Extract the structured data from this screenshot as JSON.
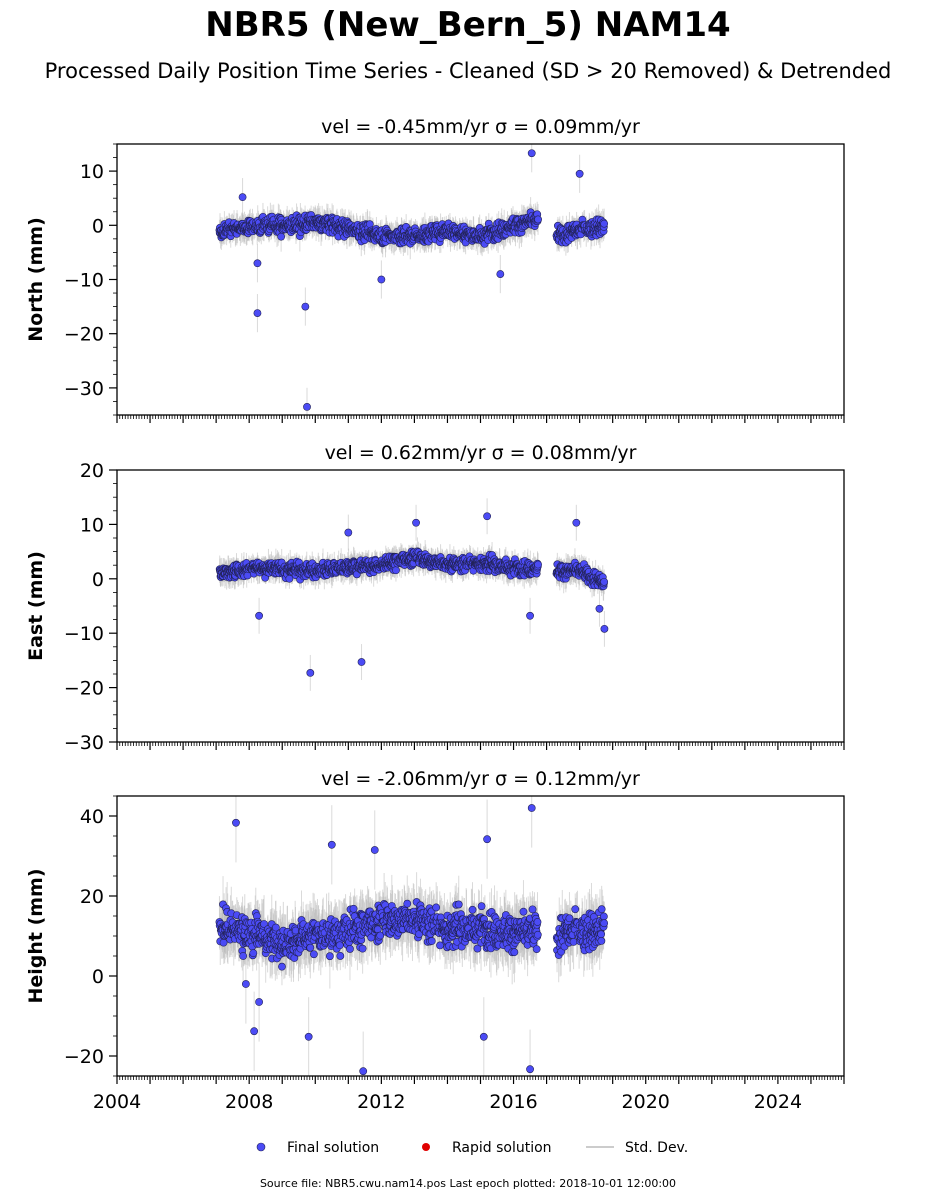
{
  "title": "NBR5 (New_Bern_5) NAM14",
  "subtitle": "Processed Daily Position Time Series - Cleaned (SD > 20 Removed) & Detrended",
  "footer": "Source file: NBR5.cwu.nam14.pos  Last epoch plotted: 2018-10-01 12:00:00",
  "legend": {
    "final": "Final solution",
    "rapid": "Rapid solution",
    "std": "Std. Dev."
  },
  "colors": {
    "final": "#4b4bf5",
    "final_edge": "#222255",
    "rapid": "#e00000",
    "std": "#bbbbbb"
  },
  "chart_data": [
    {
      "type": "scatter",
      "title": "vel = -0.45mm/yr   σ = 0.09mm/yr",
      "ylabel": "North (mm)",
      "xlim": [
        2004,
        2026
      ],
      "ylim": [
        -35,
        15
      ],
      "yticks": [
        10,
        0,
        -10,
        -20,
        -30
      ],
      "xticks": [],
      "data_range": [
        2007.1,
        2018.75
      ],
      "gap": [
        2016.75,
        2017.3
      ],
      "noise": {
        "base": 0,
        "sd": 1.8,
        "err": 1.6
      },
      "segments": [
        [
          2007.1,
          -1
        ],
        [
          2008.5,
          0
        ],
        [
          2009.5,
          0
        ],
        [
          2010.0,
          0.5
        ],
        [
          2011.0,
          -0.5
        ],
        [
          2012.0,
          -2
        ],
        [
          2013.0,
          -2
        ],
        [
          2014.0,
          -1
        ],
        [
          2015.0,
          -2
        ],
        [
          2016.0,
          0
        ],
        [
          2016.7,
          1
        ],
        [
          2017.3,
          -2
        ],
        [
          2018.0,
          -1
        ],
        [
          2018.75,
          0
        ]
      ],
      "outliers": [
        [
          2008.25,
          -16.2
        ],
        [
          2009.7,
          -15
        ],
        [
          2009.75,
          -33.5
        ],
        [
          2016.55,
          13.3
        ],
        [
          2018.0,
          9.5
        ],
        [
          2015.6,
          -9
        ],
        [
          2012.0,
          -10
        ],
        [
          2008.25,
          -7
        ],
        [
          2007.8,
          5.2
        ]
      ]
    },
    {
      "type": "scatter",
      "title": "vel = 0.62mm/yr   σ = 0.08mm/yr",
      "ylabel": "East (mm)",
      "xlim": [
        2004,
        2026
      ],
      "ylim": [
        -30,
        20
      ],
      "yticks": [
        20,
        10,
        0,
        -10,
        -20,
        -30
      ],
      "xticks": [],
      "data_range": [
        2007.1,
        2018.75
      ],
      "gap": [
        2016.75,
        2017.3
      ],
      "noise": {
        "base": 0,
        "sd": 1.6,
        "err": 1.5
      },
      "segments": [
        [
          2007.1,
          1
        ],
        [
          2008.5,
          2
        ],
        [
          2010.0,
          1.5
        ],
        [
          2011.0,
          2
        ],
        [
          2012.0,
          2.5
        ],
        [
          2013.0,
          4
        ],
        [
          2014.0,
          2.5
        ],
        [
          2015.0,
          3
        ],
        [
          2016.0,
          2
        ],
        [
          2016.7,
          2
        ],
        [
          2017.3,
          1.5
        ],
        [
          2018.0,
          1.5
        ],
        [
          2018.75,
          -1
        ]
      ],
      "outliers": [
        [
          2009.85,
          -17.3
        ],
        [
          2011.4,
          -15.3
        ],
        [
          2015.2,
          11.5
        ],
        [
          2017.9,
          10.3
        ],
        [
          2013.05,
          10.3
        ],
        [
          2008.3,
          -6.8
        ],
        [
          2016.5,
          -6.8
        ],
        [
          2018.75,
          -9.2
        ],
        [
          2018.6,
          -5.5
        ],
        [
          2011.0,
          8.5
        ]
      ]
    },
    {
      "type": "scatter",
      "title": "vel = -2.06mm/yr   σ = 0.12mm/yr",
      "ylabel": "Height (mm)",
      "xlim": [
        2004,
        2026
      ],
      "ylim": [
        -25,
        45
      ],
      "yticks": [
        40,
        20,
        0,
        -20
      ],
      "xticks": [
        2004,
        2008,
        2012,
        2016,
        2020,
        2024
      ],
      "data_range": [
        2007.1,
        2018.75
      ],
      "gap": [
        2016.75,
        2017.3
      ],
      "noise": {
        "base": 10,
        "sd": 5.5,
        "err": 4.5
      },
      "segments": [
        [
          2007.1,
          12
        ],
        [
          2008.5,
          10
        ],
        [
          2009.0,
          8
        ],
        [
          2010.0,
          10
        ],
        [
          2011.0,
          11
        ],
        [
          2012.0,
          14
        ],
        [
          2013.0,
          14
        ],
        [
          2014.0,
          12
        ],
        [
          2015.0,
          12
        ],
        [
          2016.0,
          11
        ],
        [
          2016.7,
          11
        ],
        [
          2017.3,
          10
        ],
        [
          2018.0,
          11
        ],
        [
          2018.75,
          12
        ]
      ],
      "outliers": [
        [
          2007.6,
          38.3
        ],
        [
          2016.55,
          42
        ],
        [
          2016.5,
          -23.3
        ],
        [
          2011.45,
          -23.8
        ],
        [
          2015.2,
          34.2
        ],
        [
          2007.9,
          -2
        ],
        [
          2008.15,
          -13.8
        ],
        [
          2009.8,
          -15.2
        ],
        [
          2015.1,
          -15.2
        ],
        [
          2008.3,
          -6.5
        ],
        [
          2010.5,
          32.8
        ],
        [
          2011.8,
          31.5
        ]
      ]
    }
  ]
}
